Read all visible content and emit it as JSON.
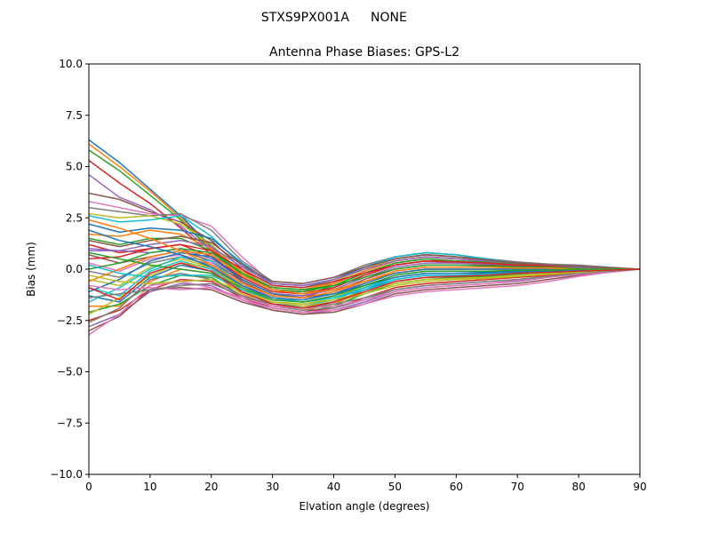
{
  "figure": {
    "suptitle_left": "STXS9PX001A",
    "suptitle_right": "NONE"
  },
  "chart_data": {
    "type": "line",
    "title": "Antenna Phase Biases: GPS-L2",
    "xlabel": "Elvation angle (degrees)",
    "ylabel": "Bias (mm)",
    "xlim": [
      0,
      90
    ],
    "ylim": [
      -10.0,
      10.0
    ],
    "xticks": [
      0,
      10,
      20,
      30,
      40,
      50,
      60,
      70,
      80,
      90
    ],
    "yticks": [
      -10.0,
      -7.5,
      -5.0,
      -2.5,
      0.0,
      2.5,
      5.0,
      7.5,
      10.0
    ],
    "xtick_labels": [
      "0",
      "10",
      "20",
      "30",
      "40",
      "50",
      "60",
      "70",
      "80",
      "90"
    ],
    "ytick_labels": [
      "−10.0",
      "−7.5",
      "−5.0",
      "−2.5",
      "0.0",
      "2.5",
      "5.0",
      "7.5",
      "10.0"
    ],
    "grid": false,
    "legend": "none",
    "colors": [
      "#1f77b4",
      "#ff7f0e",
      "#2ca02c",
      "#d62728",
      "#9467bd",
      "#8c564b",
      "#e377c2",
      "#7f7f7f",
      "#bcbd22",
      "#17becf"
    ],
    "x": [
      0,
      5,
      10,
      15,
      20,
      25,
      30,
      35,
      40,
      45,
      50,
      55,
      60,
      65,
      70,
      75,
      80,
      85,
      90
    ],
    "series": [
      {
        "values": [
          6.3,
          5.2,
          3.9,
          2.6,
          1.1,
          -0.3,
          -1.0,
          -1.1,
          -0.6,
          0.0,
          0.5,
          0.7,
          0.6,
          0.5,
          0.3,
          0.2,
          0.1,
          0.05,
          0.0
        ]
      },
      {
        "values": [
          6.1,
          5.0,
          3.8,
          2.5,
          1.0,
          -0.4,
          -1.1,
          -1.2,
          -0.7,
          -0.1,
          0.4,
          0.6,
          0.5,
          0.4,
          0.3,
          0.2,
          0.1,
          0.05,
          0.0
        ]
      },
      {
        "values": [
          5.8,
          4.8,
          3.6,
          2.4,
          0.9,
          -0.5,
          -1.2,
          -1.3,
          -0.8,
          -0.2,
          0.3,
          0.5,
          0.4,
          0.35,
          0.25,
          0.15,
          0.1,
          0.05,
          0.0
        ]
      },
      {
        "values": [
          5.3,
          4.2,
          3.2,
          2.0,
          0.7,
          -0.6,
          -1.3,
          -1.4,
          -0.9,
          -0.3,
          0.2,
          0.4,
          0.4,
          0.3,
          0.2,
          0.15,
          0.1,
          0.05,
          0.0
        ]
      },
      {
        "values": [
          4.6,
          3.5,
          2.9,
          2.1,
          0.9,
          -0.5,
          -1.2,
          -1.3,
          -0.9,
          -0.3,
          0.2,
          0.4,
          0.3,
          0.3,
          0.2,
          0.1,
          0.1,
          0.05,
          0.0
        ]
      },
      {
        "values": [
          3.7,
          3.4,
          2.8,
          2.3,
          1.4,
          0.0,
          -1.0,
          -1.1,
          -0.7,
          -0.1,
          0.4,
          0.6,
          0.5,
          0.4,
          0.3,
          0.2,
          0.1,
          0.05,
          0.0
        ]
      },
      {
        "values": [
          3.3,
          3.0,
          2.7,
          2.6,
          2.1,
          0.6,
          -0.7,
          -0.8,
          -0.5,
          0.1,
          0.6,
          0.8,
          0.7,
          0.5,
          0.35,
          0.25,
          0.15,
          0.05,
          0.0
        ]
      },
      {
        "values": [
          3.0,
          2.8,
          2.6,
          2.7,
          1.9,
          0.4,
          -0.6,
          -0.7,
          -0.4,
          0.2,
          0.6,
          0.8,
          0.7,
          0.5,
          0.35,
          0.25,
          0.2,
          0.1,
          0.0
        ]
      },
      {
        "values": [
          2.7,
          2.5,
          2.6,
          2.2,
          1.2,
          -0.2,
          -0.9,
          -1.0,
          -0.6,
          0.0,
          0.5,
          0.7,
          0.6,
          0.45,
          0.3,
          0.2,
          0.1,
          0.05,
          0.0
        ]
      },
      {
        "values": [
          2.6,
          2.3,
          2.4,
          2.6,
          1.6,
          0.2,
          -0.8,
          -0.9,
          -0.5,
          0.1,
          0.6,
          0.8,
          0.7,
          0.5,
          0.3,
          0.2,
          0.15,
          0.05,
          0.0
        ]
      },
      {
        "values": [
          2.2,
          1.8,
          2.0,
          1.9,
          1.5,
          0.3,
          -0.7,
          -0.8,
          -0.5,
          0.1,
          0.5,
          0.7,
          0.6,
          0.45,
          0.3,
          0.2,
          0.1,
          0.05,
          0.0
        ]
      },
      {
        "values": [
          1.7,
          1.6,
          1.9,
          1.7,
          1.0,
          -0.1,
          -0.9,
          -1.0,
          -0.7,
          -0.1,
          0.4,
          0.6,
          0.5,
          0.4,
          0.3,
          0.2,
          0.1,
          0.05,
          0.0
        ]
      },
      {
        "values": [
          1.5,
          1.2,
          1.5,
          1.5,
          0.9,
          -0.2,
          -1.0,
          -1.1,
          -0.8,
          -0.2,
          0.3,
          0.5,
          0.4,
          0.35,
          0.25,
          0.15,
          0.1,
          0.05,
          0.0
        ]
      },
      {
        "values": [
          1.2,
          0.8,
          1.0,
          1.2,
          0.6,
          -0.4,
          -1.1,
          -1.2,
          -0.9,
          -0.3,
          0.2,
          0.4,
          0.35,
          0.3,
          0.2,
          0.15,
          0.1,
          0.05,
          0.0
        ]
      },
      {
        "values": [
          0.9,
          0.9,
          0.8,
          1.0,
          0.5,
          -0.5,
          -1.2,
          -1.3,
          -1.0,
          -0.4,
          0.1,
          0.3,
          0.3,
          0.25,
          0.2,
          0.1,
          0.1,
          0.05,
          0.0
        ]
      },
      {
        "values": [
          0.7,
          0.3,
          0.6,
          0.9,
          0.4,
          -0.6,
          -1.3,
          -1.4,
          -1.1,
          -0.5,
          0.0,
          0.2,
          0.2,
          0.2,
          0.15,
          0.1,
          0.05,
          0.05,
          0.0
        ]
      },
      {
        "values": [
          0.3,
          -0.1,
          0.5,
          0.7,
          0.3,
          -0.7,
          -1.4,
          -1.5,
          -1.2,
          -0.6,
          -0.1,
          0.1,
          0.1,
          0.1,
          0.1,
          0.05,
          0.05,
          0.0,
          0.0
        ]
      },
      {
        "values": [
          -0.1,
          -0.4,
          0.3,
          0.6,
          0.2,
          -0.8,
          -1.5,
          -1.6,
          -1.3,
          -0.7,
          -0.2,
          0.0,
          0.0,
          0.0,
          0.0,
          0.0,
          0.0,
          0.0,
          0.0
        ]
      },
      {
        "values": [
          -0.5,
          -0.8,
          0.1,
          0.5,
          0.1,
          -0.9,
          -1.6,
          -1.7,
          -1.4,
          -0.8,
          -0.3,
          -0.1,
          -0.1,
          -0.1,
          -0.1,
          -0.05,
          0.0,
          0.0,
          0.0
        ]
      },
      {
        "values": [
          -0.9,
          -1.3,
          -0.1,
          0.4,
          0.0,
          -1.0,
          -1.7,
          -1.8,
          -1.5,
          -0.9,
          -0.4,
          -0.2,
          -0.2,
          -0.15,
          -0.1,
          -0.05,
          0.0,
          0.0,
          0.0
        ]
      },
      {
        "values": [
          -1.3,
          -1.6,
          -0.4,
          0.2,
          -0.1,
          -1.1,
          -1.7,
          -1.9,
          -1.6,
          -1.0,
          -0.5,
          -0.3,
          -0.3,
          -0.2,
          -0.15,
          -0.1,
          -0.05,
          0.0,
          0.0
        ]
      },
      {
        "values": [
          -1.8,
          -1.8,
          -0.6,
          0.0,
          -0.2,
          -1.2,
          -1.8,
          -2.0,
          -1.7,
          -1.1,
          -0.6,
          -0.4,
          -0.35,
          -0.3,
          -0.2,
          -0.15,
          -0.1,
          -0.05,
          0.0
        ]
      },
      {
        "values": [
          -2.1,
          -1.7,
          -0.8,
          -0.3,
          -0.4,
          -1.3,
          -1.9,
          -2.1,
          -1.8,
          -1.2,
          -0.7,
          -0.5,
          -0.4,
          -0.35,
          -0.25,
          -0.2,
          -0.1,
          -0.05,
          0.0
        ]
      },
      {
        "values": [
          -2.5,
          -2.0,
          -1.0,
          -0.5,
          -0.6,
          -1.4,
          -1.9,
          -2.1,
          -1.9,
          -1.4,
          -0.9,
          -0.7,
          -0.6,
          -0.5,
          -0.4,
          -0.3,
          -0.2,
          -0.1,
          0.0
        ]
      },
      {
        "values": [
          -2.8,
          -2.2,
          -1.1,
          -0.7,
          -0.8,
          -1.5,
          -2.0,
          -2.2,
          -2.0,
          -1.6,
          -1.1,
          -0.9,
          -0.8,
          -0.7,
          -0.6,
          -0.4,
          -0.25,
          -0.1,
          0.0
        ]
      },
      {
        "values": [
          -3.0,
          -2.3,
          -1.0,
          -0.9,
          -1.0,
          -1.6,
          -2.0,
          -2.2,
          -2.1,
          -1.7,
          -1.2,
          -1.0,
          -0.9,
          -0.8,
          -0.7,
          -0.5,
          -0.3,
          -0.15,
          0.0
        ]
      },
      {
        "values": [
          -3.2,
          -2.2,
          -0.8,
          -0.6,
          -0.9,
          -1.5,
          -1.9,
          -2.1,
          -2.0,
          -1.7,
          -1.3,
          -1.1,
          -1.0,
          -0.9,
          -0.8,
          -0.6,
          -0.35,
          -0.15,
          0.0
        ]
      },
      {
        "values": [
          -2.6,
          -1.9,
          -0.5,
          -0.2,
          -0.5,
          -1.3,
          -1.8,
          -2.0,
          -1.9,
          -1.5,
          -1.0,
          -0.8,
          -0.7,
          -0.6,
          -0.5,
          -0.35,
          -0.2,
          -0.1,
          0.0
        ]
      },
      {
        "values": [
          -2.2,
          -1.4,
          -0.3,
          0.3,
          0.1,
          -1.0,
          -1.6,
          -1.8,
          -1.6,
          -1.2,
          -0.8,
          -0.6,
          -0.5,
          -0.45,
          -0.35,
          -0.25,
          -0.15,
          -0.05,
          0.0
        ]
      },
      {
        "values": [
          -1.6,
          -0.9,
          0.0,
          0.6,
          0.4,
          -0.8,
          -1.4,
          -1.6,
          -1.4,
          -1.0,
          -0.6,
          -0.4,
          -0.35,
          -0.3,
          -0.2,
          -0.15,
          -0.1,
          -0.05,
          0.0
        ]
      },
      {
        "values": [
          -1.1,
          -0.5,
          0.4,
          0.8,
          0.6,
          -0.5,
          -1.2,
          -1.4,
          -1.2,
          -0.8,
          -0.4,
          -0.2,
          -0.2,
          -0.15,
          -0.1,
          -0.1,
          -0.05,
          0.0,
          0.0
        ]
      },
      {
        "values": [
          -0.6,
          0.0,
          0.6,
          0.9,
          0.7,
          -0.3,
          -1.0,
          -1.2,
          -1.0,
          -0.6,
          -0.2,
          0.0,
          0.0,
          0.0,
          0.0,
          0.0,
          0.0,
          0.0,
          0.0
        ]
      },
      {
        "values": [
          0.0,
          0.3,
          0.8,
          1.0,
          0.8,
          -0.2,
          -0.9,
          -1.0,
          -0.8,
          -0.4,
          0.0,
          0.2,
          0.2,
          0.15,
          0.1,
          0.1,
          0.05,
          0.0,
          0.0
        ]
      },
      {
        "values": [
          0.5,
          0.6,
          1.0,
          1.2,
          0.9,
          0.0,
          -0.8,
          -0.9,
          -0.6,
          -0.2,
          0.2,
          0.4,
          0.35,
          0.3,
          0.2,
          0.15,
          0.1,
          0.05,
          0.0
        ]
      },
      {
        "values": [
          1.0,
          0.9,
          1.2,
          1.4,
          1.1,
          0.1,
          -0.7,
          -0.8,
          -0.5,
          0.0,
          0.4,
          0.6,
          0.5,
          0.4,
          0.3,
          0.2,
          0.1,
          0.05,
          0.0
        ]
      },
      {
        "values": [
          1.4,
          1.1,
          1.4,
          1.6,
          1.3,
          0.2,
          -0.6,
          -0.7,
          -0.4,
          0.1,
          0.5,
          0.7,
          0.6,
          0.45,
          0.3,
          0.2,
          0.15,
          0.05,
          0.0
        ]
      },
      {
        "values": [
          -0.8,
          -1.0,
          -0.9,
          -1.0,
          -0.9,
          -1.4,
          -1.8,
          -1.9,
          -1.8,
          -1.5,
          -1.1,
          -0.9,
          -0.8,
          -0.7,
          -0.55,
          -0.4,
          -0.25,
          -0.1,
          0.0
        ]
      },
      {
        "values": [
          -1.4,
          -1.2,
          -1.0,
          -0.8,
          -0.7,
          -1.3,
          -1.7,
          -1.9,
          -1.7,
          -1.4,
          -1.0,
          -0.8,
          -0.7,
          -0.6,
          -0.5,
          -0.35,
          -0.2,
          -0.1,
          0.0
        ]
      },
      {
        "values": [
          -0.3,
          -0.6,
          -0.7,
          -0.6,
          -0.5,
          -1.1,
          -1.6,
          -1.7,
          -1.5,
          -1.1,
          -0.7,
          -0.5,
          -0.45,
          -0.4,
          -0.3,
          -0.2,
          -0.15,
          -0.05,
          0.0
        ]
      },
      {
        "values": [
          0.2,
          -0.2,
          -0.4,
          -0.3,
          -0.3,
          -1.0,
          -1.5,
          -1.6,
          -1.4,
          -0.9,
          -0.5,
          -0.3,
          -0.3,
          -0.25,
          -0.2,
          -0.15,
          -0.1,
          -0.05,
          0.0
        ]
      },
      {
        "values": [
          1.9,
          1.4,
          1.1,
          0.7,
          0.1,
          -0.8,
          -1.4,
          -1.5,
          -1.2,
          -0.7,
          -0.2,
          0.0,
          0.0,
          0.0,
          0.0,
          0.0,
          0.0,
          0.0,
          0.0
        ]
      },
      {
        "values": [
          2.4,
          2.0,
          1.5,
          0.9,
          0.2,
          -0.7,
          -1.3,
          -1.4,
          -1.1,
          -0.6,
          -0.1,
          0.1,
          0.1,
          0.1,
          0.05,
          0.05,
          0.0,
          0.0,
          0.0
        ]
      },
      {
        "values": [
          0.8,
          0.5,
          0.2,
          0.0,
          -0.2,
          -0.9,
          -1.5,
          -1.6,
          -1.3,
          -0.8,
          -0.3,
          -0.1,
          -0.1,
          -0.1,
          -0.05,
          -0.05,
          0.0,
          0.0,
          0.0
        ]
      },
      {
        "values": [
          -0.9,
          -1.5,
          -0.2,
          0.3,
          -0.1,
          -1.1,
          -1.7,
          -1.9,
          -1.6,
          -1.1,
          -0.6,
          -0.4,
          -0.35,
          -0.3,
          -0.2,
          -0.15,
          -0.1,
          -0.05,
          0.0
        ]
      }
    ]
  }
}
